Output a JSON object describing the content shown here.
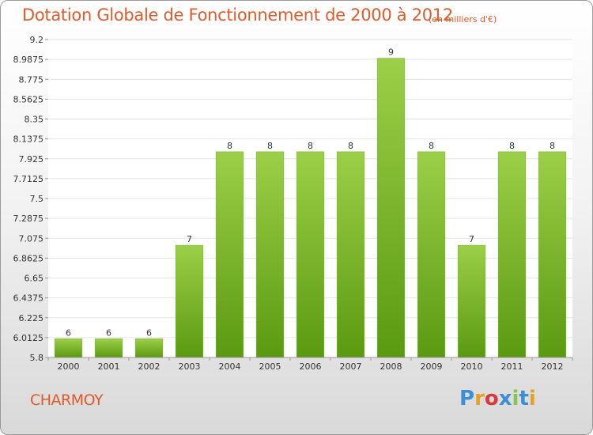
{
  "header": {
    "title": "Dotation Globale de Fonctionnement de 2000 à 2012",
    "subtitle": "(en milliers d'€)"
  },
  "footer": {
    "commune": "CHARMOY",
    "logo": "Proxiti",
    "logo_colors": [
      "#3a8fd8",
      "#e8a020",
      "#d83a3a",
      "#3a8fd8",
      "#8bc34a",
      "#3a8fd8",
      "#e8a020"
    ]
  },
  "chart_data": {
    "type": "bar",
    "title": "Dotation Globale de Fonctionnement de 2000 à 2012",
    "subtitle": "(en milliers d'€)",
    "xlabel": "",
    "ylabel": "",
    "categories": [
      "2000",
      "2001",
      "2002",
      "2003",
      "2004",
      "2005",
      "2006",
      "2007",
      "2008",
      "2009",
      "2010",
      "2011",
      "2012"
    ],
    "values": [
      6,
      6,
      6,
      7,
      8,
      8,
      8,
      8,
      9,
      8,
      7,
      8,
      8
    ],
    "data_labels": [
      "6",
      "6",
      "6",
      "7",
      "8",
      "8",
      "8",
      "8",
      "9",
      "8",
      "7",
      "8",
      "8"
    ],
    "ylim": [
      5.8,
      9.2
    ],
    "yticks": [
      5.8,
      6.0125,
      6.225,
      6.4375,
      6.65,
      6.8625,
      7.075,
      7.2875,
      7.5,
      7.7125,
      7.925,
      8.1375,
      8.35,
      8.5625,
      8.775,
      8.9875,
      9.2
    ],
    "ytick_labels": [
      "5.8",
      "6.0125",
      "6.225",
      "6.4375",
      "6.65",
      "6.8625",
      "7.075",
      "7.2875",
      "7.5",
      "7.7125",
      "7.925",
      "8.1375",
      "8.35",
      "8.5625",
      "8.775",
      "8.9875",
      "9.2"
    ],
    "grid": true,
    "bar_color_top": "#9ccf48",
    "bar_color_bottom": "#5a9a10",
    "plot_background": "#ffffff",
    "grid_color": "#e4e4e4"
  }
}
